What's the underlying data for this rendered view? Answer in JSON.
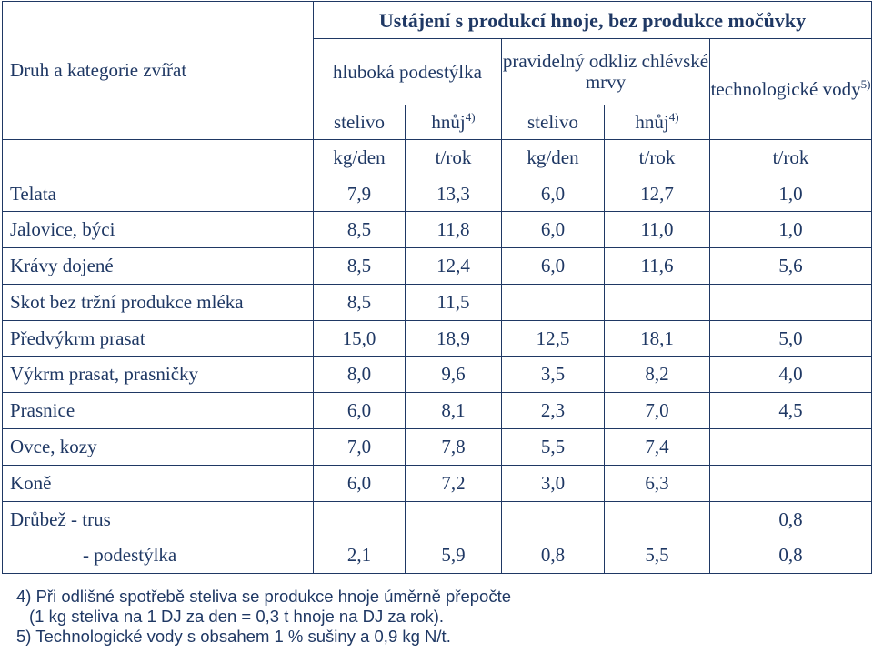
{
  "header": {
    "row_label": "Druh a kategorie zvířat",
    "group_title": "Ustájení s produkcí hnoje, bez produkce močůvky",
    "deep_litter": "hluboká podestýlka",
    "regular_removal": "pravidelný odkliz chlévské mrvy",
    "tech_water": "technologické vody",
    "tech_water_sup": "5)",
    "litter": "stelivo",
    "manure": "hnůj",
    "manure_sup": "4)",
    "units": [
      "kg/den",
      "t/rok",
      "kg/den",
      "t/rok",
      "t/rok"
    ]
  },
  "rows": [
    {
      "label": "Telata",
      "values": [
        "7,9",
        "13,3",
        "6,0",
        "12,7",
        "1,0"
      ]
    },
    {
      "label": "Jalovice, býci",
      "values": [
        "8,5",
        "11,8",
        "6,0",
        "11,0",
        "1,0"
      ]
    },
    {
      "label": "Krávy dojené",
      "values": [
        "8,5",
        "12,4",
        "6,0",
        "11,6",
        "5,6"
      ]
    },
    {
      "label": "Skot bez tržní produkce mléka",
      "values": [
        "8,5",
        "11,5",
        "",
        "",
        ""
      ]
    },
    {
      "label": "Předvýkrm prasat",
      "values": [
        "15,0",
        "18,9",
        "12,5",
        "18,1",
        "5,0"
      ]
    },
    {
      "label": "Výkrm prasat, prasničky",
      "values": [
        "8,0",
        "9,6",
        "3,5",
        "8,2",
        "4,0"
      ]
    },
    {
      "label": "Prasnice",
      "values": [
        "6,0",
        "8,1",
        "2,3",
        "7,0",
        "4,5"
      ]
    },
    {
      "label": "Ovce, kozy",
      "values": [
        "7,0",
        "7,8",
        "5,5",
        "7,4",
        ""
      ]
    },
    {
      "label": "Koně",
      "values": [
        "6,0",
        "7,2",
        "3,0",
        "6,3",
        ""
      ]
    },
    {
      "label": "Drůbež - trus",
      "values": [
        "",
        "",
        "",
        "",
        "0,8"
      ]
    },
    {
      "label": "- podestýlka",
      "values": [
        "2,1",
        "5,9",
        "0,8",
        "5,5",
        "0,8"
      ]
    }
  ],
  "footnotes": {
    "fn4_line1": "4) Při odlišné spotřebě steliva se produkce hnoje úměrně přepočte",
    "fn4_line2": "(1 kg steliva na 1 DJ za den = 0,3 t hnoje na DJ za rok).",
    "fn5": "5) Technologické vody s obsahem 1 % sušiny a 0,9 kg N/t."
  },
  "colors": {
    "text": "#1f3864",
    "border": "#1f3864",
    "background": "#ffffff"
  }
}
